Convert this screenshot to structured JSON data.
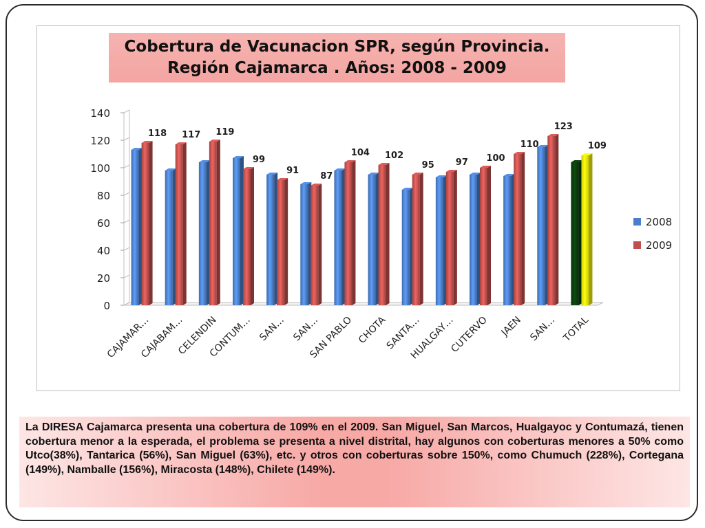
{
  "chart_data": {
    "type": "bar",
    "title": "Cobertura de Vacunacion SPR, según Provincia. Región Cajamarca . Años: 2008 - 2009",
    "categories": [
      "CAJAMAR…",
      "CAJABAM…",
      "CELENDIN",
      "CONTUM…",
      "SAN…",
      "SAN…",
      "SAN PABLO",
      "CHOTA",
      "SANTA…",
      "HUALGAY…",
      "CUTERVO",
      "JAEN",
      "SAN…",
      "TOTAL"
    ],
    "series": [
      {
        "name": "2008",
        "color": "#4a7ec9",
        "values": [
          113,
          98,
          104,
          107,
          95,
          88,
          98,
          95,
          84,
          93,
          95,
          94,
          115,
          104
        ]
      },
      {
        "name": "2009",
        "color": "#c0504d",
        "values": [
          118,
          117,
          119,
          99,
          91,
          87,
          104,
          102,
          95,
          97,
          100,
          110,
          123,
          109
        ]
      }
    ],
    "data_labels": [
      "118",
      "117",
      "119",
      "99",
      "91",
      "87",
      "104",
      "102",
      "95",
      "97",
      "100",
      "110",
      "123",
      "109"
    ],
    "total_colors": {
      "2008": "#0b3d0b",
      "2009": "#f2f20a"
    },
    "yticks": [
      "0",
      "20",
      "40",
      "60",
      "80",
      "100",
      "120",
      "140"
    ],
    "ylim": [
      0,
      140
    ],
    "legend": "right",
    "grid": false
  },
  "description_text": "La DIRESA Cajamarca presenta una cobertura de 109% en el 2009. San Miguel, San Marcos, Hualgayoc y Contumazá, tienen cobertura menor a la  esperada, el problema se presenta a nivel distrital, hay algunos con coberturas menores a 50% como Utco(38%), Tantarica (56%), San Miguel (63%), etc. y otros con coberturas sobre 150%, como Chumuch (228%), Cortegana (149%), Namballe (156%), Miracosta (148%), Chilete (149%)."
}
